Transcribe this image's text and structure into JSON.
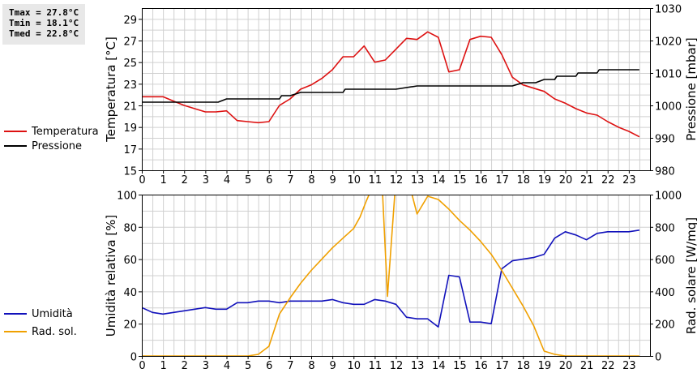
{
  "stats": {
    "tmax": "Tmax = 27.8°C",
    "tmin": "Tmin = 18.1°C",
    "tmed": "Tmed = 22.8°C"
  },
  "colors": {
    "temperature": "#dd1111",
    "pressure": "#000000",
    "humidity": "#1111bb",
    "radiation": "#f0a000",
    "grid": "#d0d0d0"
  },
  "chart_data": [
    {
      "type": "line",
      "xlim": [
        0,
        24
      ],
      "x_ticks": [
        "0",
        "1",
        "2",
        "3",
        "4",
        "5",
        "6",
        "7",
        "8",
        "9",
        "10",
        "11",
        "12",
        "13",
        "14",
        "15",
        "16",
        "17",
        "18",
        "19",
        "20",
        "21",
        "22",
        "23"
      ],
      "ylabel": "Temperatura [°C]",
      "ylim": [
        15,
        30
      ],
      "y_ticks": [
        "15",
        "17",
        "19",
        "21",
        "23",
        "25",
        "27",
        "29"
      ],
      "y2label": "Pressione [mbar]",
      "y2lim": [
        980,
        1030
      ],
      "y2_ticks": [
        "980",
        "990",
        "1000",
        "1010",
        "1020",
        "1030"
      ],
      "grid": true,
      "legend_position": "left",
      "series": [
        {
          "name": "Temperatura",
          "axis": "left",
          "x": [
            0,
            0.5,
            1,
            1.5,
            2,
            2.5,
            3,
            3.5,
            4,
            4.5,
            5,
            5.5,
            6,
            6.5,
            7,
            7.5,
            8,
            8.5,
            9,
            9.5,
            10,
            10.5,
            11,
            11.5,
            12,
            12.5,
            13,
            13.5,
            14,
            14.5,
            15,
            15.5,
            16,
            16.5,
            17,
            17.5,
            18,
            18.5,
            19,
            19.5,
            20,
            20.5,
            21,
            21.5,
            22,
            22.5,
            23,
            23.5
          ],
          "y": [
            21.8,
            21.8,
            21.8,
            21.4,
            21.0,
            20.7,
            20.4,
            20.4,
            20.5,
            19.6,
            19.5,
            19.4,
            19.5,
            21.0,
            21.6,
            22.5,
            22.9,
            23.5,
            24.3,
            25.5,
            25.5,
            26.5,
            25.0,
            25.2,
            26.2,
            27.2,
            27.1,
            27.8,
            27.3,
            24.1,
            24.3,
            27.1,
            27.4,
            27.3,
            25.7,
            23.6,
            22.9,
            22.6,
            22.3,
            21.6,
            21.2,
            20.7,
            20.3,
            20.1,
            19.5,
            19.0,
            18.6,
            18.1
          ]
        },
        {
          "name": "Pressione",
          "axis": "right",
          "x": [
            0,
            0.5,
            1,
            1.5,
            2,
            2.5,
            3,
            3.5,
            3.6,
            4,
            5,
            5.1,
            6,
            6.5,
            6.6,
            7,
            7.5,
            8,
            9,
            9.5,
            9.6,
            10,
            11,
            12,
            13,
            14,
            15,
            16,
            16.5,
            17,
            17.5,
            18,
            18.6,
            19,
            19.5,
            19.6,
            20,
            20.5,
            20.6,
            21,
            21.5,
            21.6,
            22,
            22.5,
            23,
            23.5
          ],
          "y": [
            1001,
            1001,
            1001,
            1001,
            1001,
            1001,
            1001,
            1001,
            1001,
            1002,
            1002,
            1002,
            1002,
            1002,
            1003,
            1003,
            1004,
            1004,
            1004,
            1004,
            1005,
            1005,
            1005,
            1005,
            1006,
            1006,
            1006,
            1006,
            1006,
            1006,
            1006,
            1007,
            1007,
            1008,
            1008,
            1009,
            1009,
            1009,
            1010,
            1010,
            1010,
            1011,
            1011,
            1011,
            1011,
            1011
          ]
        }
      ]
    },
    {
      "type": "line",
      "xlim": [
        0,
        24
      ],
      "x_ticks": [
        "0",
        "1",
        "2",
        "3",
        "4",
        "5",
        "6",
        "7",
        "8",
        "9",
        "10",
        "11",
        "12",
        "13",
        "14",
        "15",
        "16",
        "17",
        "18",
        "19",
        "20",
        "21",
        "22",
        "23"
      ],
      "ylabel": "Umidità relativa [%]",
      "ylim": [
        0,
        100
      ],
      "y_ticks": [
        "0",
        "20",
        "40",
        "60",
        "80",
        "100"
      ],
      "y2label": "Rad. solare [W/mq]",
      "y2lim": [
        0,
        1000
      ],
      "y2_ticks": [
        "0",
        "200",
        "400",
        "600",
        "800",
        "1000"
      ],
      "grid": true,
      "legend_position": "left",
      "series": [
        {
          "name": "Umidità",
          "axis": "left",
          "x": [
            0,
            0.5,
            1,
            1.5,
            2,
            2.5,
            3,
            3.5,
            4,
            4.5,
            5,
            5.5,
            6,
            6.5,
            7,
            7.5,
            8,
            8.5,
            9,
            9.5,
            10,
            10.5,
            11,
            11.5,
            12,
            12.5,
            13,
            13.5,
            14,
            14.5,
            15,
            15.5,
            16,
            16.5,
            17,
            17.5,
            18,
            18.5,
            19,
            19.5,
            20,
            20.5,
            21,
            21.5,
            22,
            22.5,
            23,
            23.5
          ],
          "y": [
            30,
            27,
            26,
            27,
            28,
            29,
            30,
            29,
            29,
            33,
            33,
            34,
            34,
            33,
            34,
            34,
            34,
            34,
            35,
            33,
            32,
            32,
            35,
            34,
            32,
            24,
            23,
            23,
            18,
            50,
            49,
            21,
            21,
            20,
            54,
            59,
            60,
            61,
            63,
            73,
            77,
            75,
            72,
            76,
            77,
            77,
            77,
            78
          ]
        },
        {
          "name": "Rad. sol.",
          "axis": "right",
          "x": [
            0,
            1,
            2,
            3,
            4,
            5,
            5.5,
            6,
            6.5,
            7,
            7.5,
            8,
            8.5,
            9,
            9.5,
            10,
            10.3,
            10.6,
            11,
            11.3,
            11.6,
            12,
            12.2,
            12.6,
            13,
            13.5,
            14,
            14.5,
            15,
            15.5,
            16,
            16.5,
            17,
            17.5,
            18,
            18.5,
            19,
            19.5,
            20,
            21,
            22,
            23,
            23.5
          ],
          "y": [
            0,
            0,
            0,
            0,
            0,
            0,
            10,
            60,
            260,
            360,
            450,
            530,
            600,
            670,
            730,
            790,
            860,
            960,
            1080,
            1200,
            370,
            1100,
            1100,
            1080,
            880,
            990,
            970,
            910,
            840,
            780,
            710,
            630,
            530,
            420,
            310,
            190,
            30,
            10,
            0,
            0,
            0,
            0,
            0
          ]
        }
      ]
    }
  ]
}
